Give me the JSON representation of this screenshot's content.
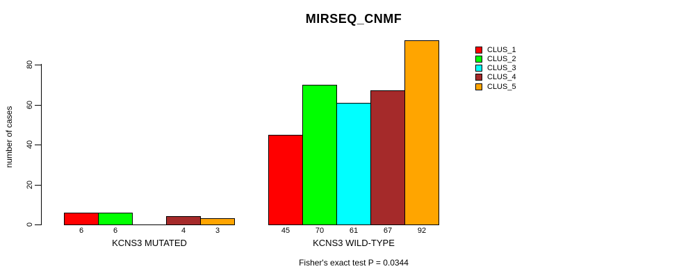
{
  "title": "MIRSEQ_CNMF",
  "chart_data": {
    "type": "bar",
    "title": "MIRSEQ_CNMF",
    "xlabel": "",
    "ylabel": "number of cases",
    "ylim": [
      0,
      92
    ],
    "yticks": [
      0,
      20,
      40,
      60,
      80
    ],
    "grid": false,
    "legend_position": "right",
    "series": [
      {
        "name": "CLUS_1",
        "color": "#ff0000"
      },
      {
        "name": "CLUS_2",
        "color": "#00ff00"
      },
      {
        "name": "CLUS_3",
        "color": "#00ffff"
      },
      {
        "name": "CLUS_4",
        "color": "#a52a2a"
      },
      {
        "name": "CLUS_5",
        "color": "#ffa500"
      }
    ],
    "groups": [
      {
        "label": "KCNS3 MUTATED",
        "values": [
          6,
          6,
          0,
          4,
          3
        ],
        "bar_labels": [
          "6",
          "6",
          "",
          "4",
          "3"
        ]
      },
      {
        "label": "KCNS3 WILD-TYPE",
        "values": [
          45,
          70,
          61,
          67,
          92
        ],
        "bar_labels": [
          "45",
          "70",
          "61",
          "67",
          "92"
        ]
      }
    ],
    "annotation": "Fisher's exact test P = 0.0344"
  }
}
